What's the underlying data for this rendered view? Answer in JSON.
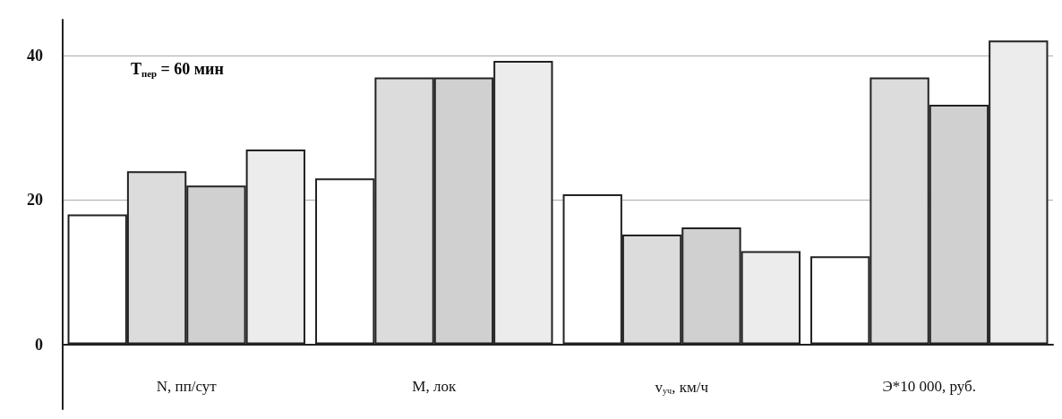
{
  "chart_data": {
    "type": "bar",
    "categories": [
      "N, пп/сут",
      "М, лок",
      "v$_{уч}$, км/ч",
      "Э*10 000, руб."
    ],
    "series": [
      {
        "color": "#ffffff",
        "values": [
          18,
          23,
          20.8,
          12.2
        ]
      },
      {
        "color": "#dcdcdc",
        "values": [
          24,
          37,
          15.2,
          37
        ]
      },
      {
        "color": "#d0d0d0",
        "values": [
          22,
          37,
          16.2,
          33.2
        ]
      },
      {
        "color": "#ececec",
        "values": [
          27,
          39.3,
          12.9,
          42.1
        ]
      }
    ],
    "ylim": [
      -9,
      45
    ],
    "yticks": [
      0,
      20,
      40
    ],
    "grid": "y",
    "annotations": [
      "T$_{пер}$ = 60 мин"
    ]
  }
}
